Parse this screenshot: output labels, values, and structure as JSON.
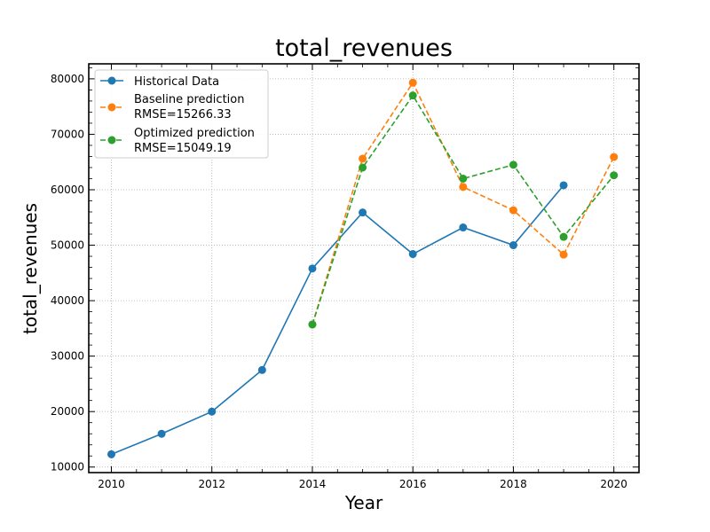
{
  "chart_data": {
    "type": "line",
    "title": "total_revenues",
    "xlabel": "Year",
    "ylabel": "total_revenues",
    "xlim": [
      2009.55,
      2020.5
    ],
    "ylim": [
      9000,
      82700
    ],
    "x_ticks": [
      2010,
      2012,
      2014,
      2016,
      2018,
      2020
    ],
    "x_tick_labels": [
      "2010",
      "2012",
      "2014",
      "2016",
      "2018",
      "2020"
    ],
    "y_ticks": [
      10000,
      20000,
      30000,
      40000,
      50000,
      60000,
      70000,
      80000
    ],
    "y_tick_labels": [
      "10000",
      "20000",
      "30000",
      "40000",
      "50000",
      "60000",
      "70000",
      "80000"
    ],
    "grid": true,
    "legend_position": "top-left",
    "series": [
      {
        "name": "Historical Data",
        "color": "#1f77b4",
        "linestyle": "solid",
        "x": [
          2010,
          2011,
          2012,
          2013,
          2014,
          2015,
          2016,
          2017,
          2018,
          2019
        ],
        "y": [
          12300,
          16000,
          20000,
          27500,
          45800,
          55900,
          48400,
          53200,
          50000,
          60800
        ]
      },
      {
        "name": "Baseline prediction",
        "name_line2": "RMSE=15266.33",
        "color": "#ff7f0e",
        "linestyle": "dashed",
        "x": [
          2014,
          2015,
          2016,
          2017,
          2018,
          2019,
          2020
        ],
        "y": [
          35700,
          65600,
          79300,
          60500,
          56300,
          48300,
          65900
        ]
      },
      {
        "name": "Optimized prediction",
        "name_line2": "RMSE=15049.19",
        "color": "#2ca02c",
        "linestyle": "dashed",
        "x": [
          2014,
          2015,
          2016,
          2017,
          2018,
          2019,
          2020
        ],
        "y": [
          35700,
          64000,
          77000,
          62000,
          64500,
          51500,
          62600
        ]
      }
    ]
  }
}
